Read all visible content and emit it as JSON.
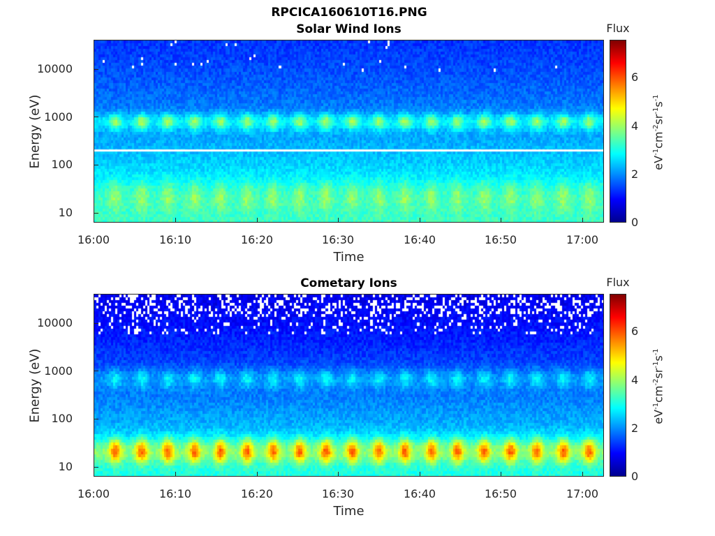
{
  "figure_title": "RPCICA160610T16.PNG",
  "colors": {
    "axis": "#262626"
  },
  "chart_data": [
    {
      "type": "heatmap",
      "title": "Solar Wind Ions",
      "xlabel": "Time",
      "ylabel": "Energy (eV)",
      "xticks": [
        "16:00",
        "16:10",
        "16:20",
        "16:30",
        "16:40",
        "16:50",
        "17:00"
      ],
      "xlim": [
        "16:00",
        "17:02"
      ],
      "yscale": "log",
      "yticks": [
        "10",
        "100",
        "1000",
        "10000"
      ],
      "ylim": [
        6,
        40000
      ],
      "colorbar": {
        "title": "Flux",
        "label": "eV-1cm-2sr-1s-1",
        "ticks": [
          "0",
          "2",
          "4",
          "6"
        ],
        "range": [
          0,
          7.4
        ],
        "colormap": "jet"
      },
      "pulse_period_min": 3.2,
      "features": [
        {
          "energy_range_eV": [
            550,
            1100
          ],
          "peak_flux": 4.0
        },
        {
          "energy_range_eV": [
            10,
            40
          ],
          "peak_flux": 3.9
        },
        {
          "energy_eV": 200,
          "flux": "no data (white line)"
        }
      ],
      "background_flux": {
        "high_energy": 1.3,
        "low_energy": 3.2
      }
    },
    {
      "type": "heatmap",
      "title": "Cometary Ions",
      "xlabel": "Time",
      "ylabel": "Energy (eV)",
      "xticks": [
        "16:00",
        "16:10",
        "16:20",
        "16:30",
        "16:40",
        "16:50",
        "17:00"
      ],
      "xlim": [
        "16:00",
        "17:02"
      ],
      "yscale": "log",
      "yticks": [
        "10",
        "100",
        "1000",
        "10000"
      ],
      "ylim": [
        6,
        40000
      ],
      "colorbar": {
        "title": "Flux",
        "label": "eV-1cm-2sr-1s-1",
        "ticks": [
          "0",
          "2",
          "4",
          "6"
        ],
        "range": [
          0,
          7.4
        ],
        "colormap": "jet"
      },
      "pulse_period_min": 3.2,
      "features": [
        {
          "energy_range_eV": [
            450,
            1000
          ],
          "peak_flux": 2.8
        },
        {
          "energy_range_eV": [
            12,
            35
          ],
          "peak_flux": 5.8
        },
        {
          "energy_range_eV": [
            6000,
            40000
          ],
          "flux": "sparse data with gaps (white)"
        }
      ],
      "background_flux": {
        "high_energy": 0.8,
        "low_energy": 3.0
      }
    }
  ]
}
